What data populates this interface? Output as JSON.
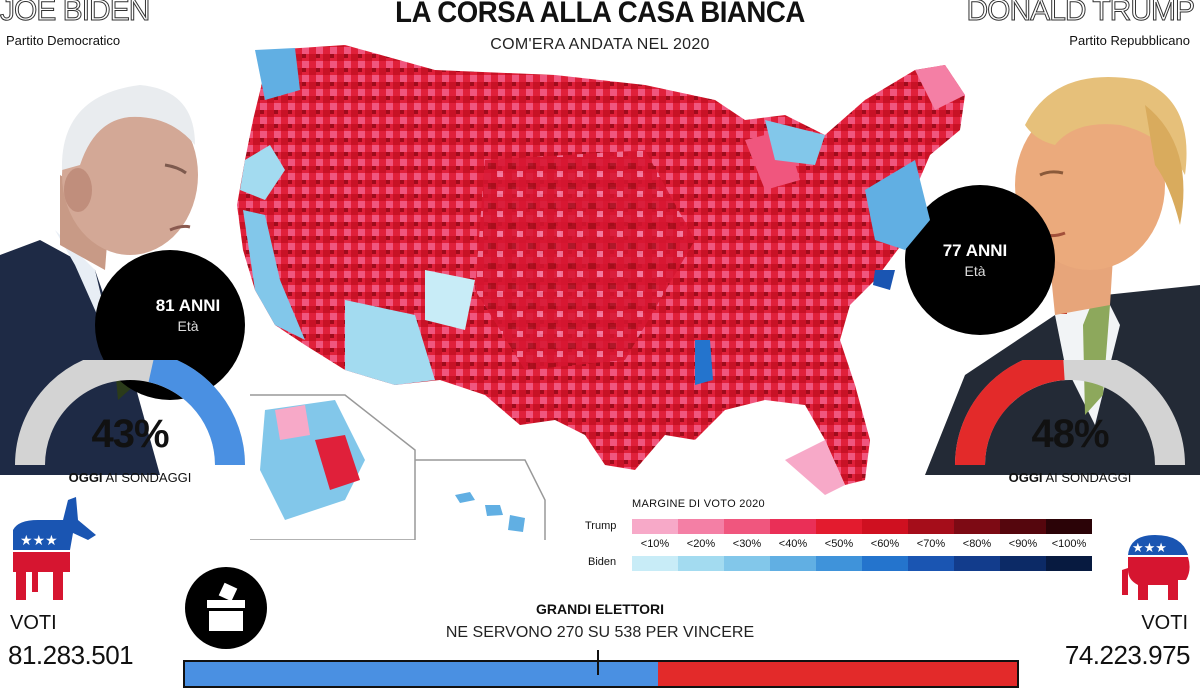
{
  "header": {
    "title": "LA CORSA ALLA CASA BIANCA",
    "subtitle": "COM'ERA ANDATA NEL 2020"
  },
  "biden": {
    "name": "JOE BIDEN",
    "party": "Partito Democratico",
    "age": "81 ANNI",
    "age_label": "Età",
    "poll_percent": "43%",
    "poll_value": 0.43,
    "poll_label_bold": "OGGI",
    "poll_label_rest": " AI SONDAGGI",
    "votes_label": "VOTI",
    "votes": "81.283.501",
    "color": "#4a90e2"
  },
  "trump": {
    "name": "DONALD TRUMP",
    "party": "Partito Repubblicano",
    "age": "77 ANNI",
    "age_label": "Età",
    "poll_percent": "48%",
    "poll_value": 0.48,
    "poll_label_bold": "OGGI",
    "poll_label_rest": " AI SONDAGGI",
    "votes_label": "VOTI",
    "votes": "74.223.975",
    "color": "#e32a2a"
  },
  "legend": {
    "title": "MARGINE DI VOTO 2020",
    "trump_label": "Trump",
    "biden_label": "Biden",
    "ticks": [
      "<10%",
      "<20%",
      "<30%",
      "<40%",
      "<50%",
      "<60%",
      "<70%",
      "<80%",
      "<90%",
      "<100%"
    ],
    "trump_colors": [
      "#f7a9c8",
      "#f47fa5",
      "#f0567e",
      "#ea2f57",
      "#e31b2e",
      "#cf1020",
      "#a50d1a",
      "#7d0a14",
      "#55060d",
      "#2b0307"
    ],
    "biden_colors": [
      "#c8ecf7",
      "#a3dbf0",
      "#82c7ea",
      "#61afe3",
      "#3f93da",
      "#2474cd",
      "#1a55b2",
      "#123c8c",
      "#0c2a66",
      "#071a40"
    ]
  },
  "electoral": {
    "title": "GRANDI ELETTORI",
    "subtitle": "NE SERVONO 270 SU 538 PER VINCERE",
    "biden_ev": 306,
    "trump_ev": 232,
    "total": 538
  },
  "icons": {
    "ballot": "ballot-box-icon",
    "democrat": "donkey-icon",
    "republican": "elephant-icon"
  }
}
